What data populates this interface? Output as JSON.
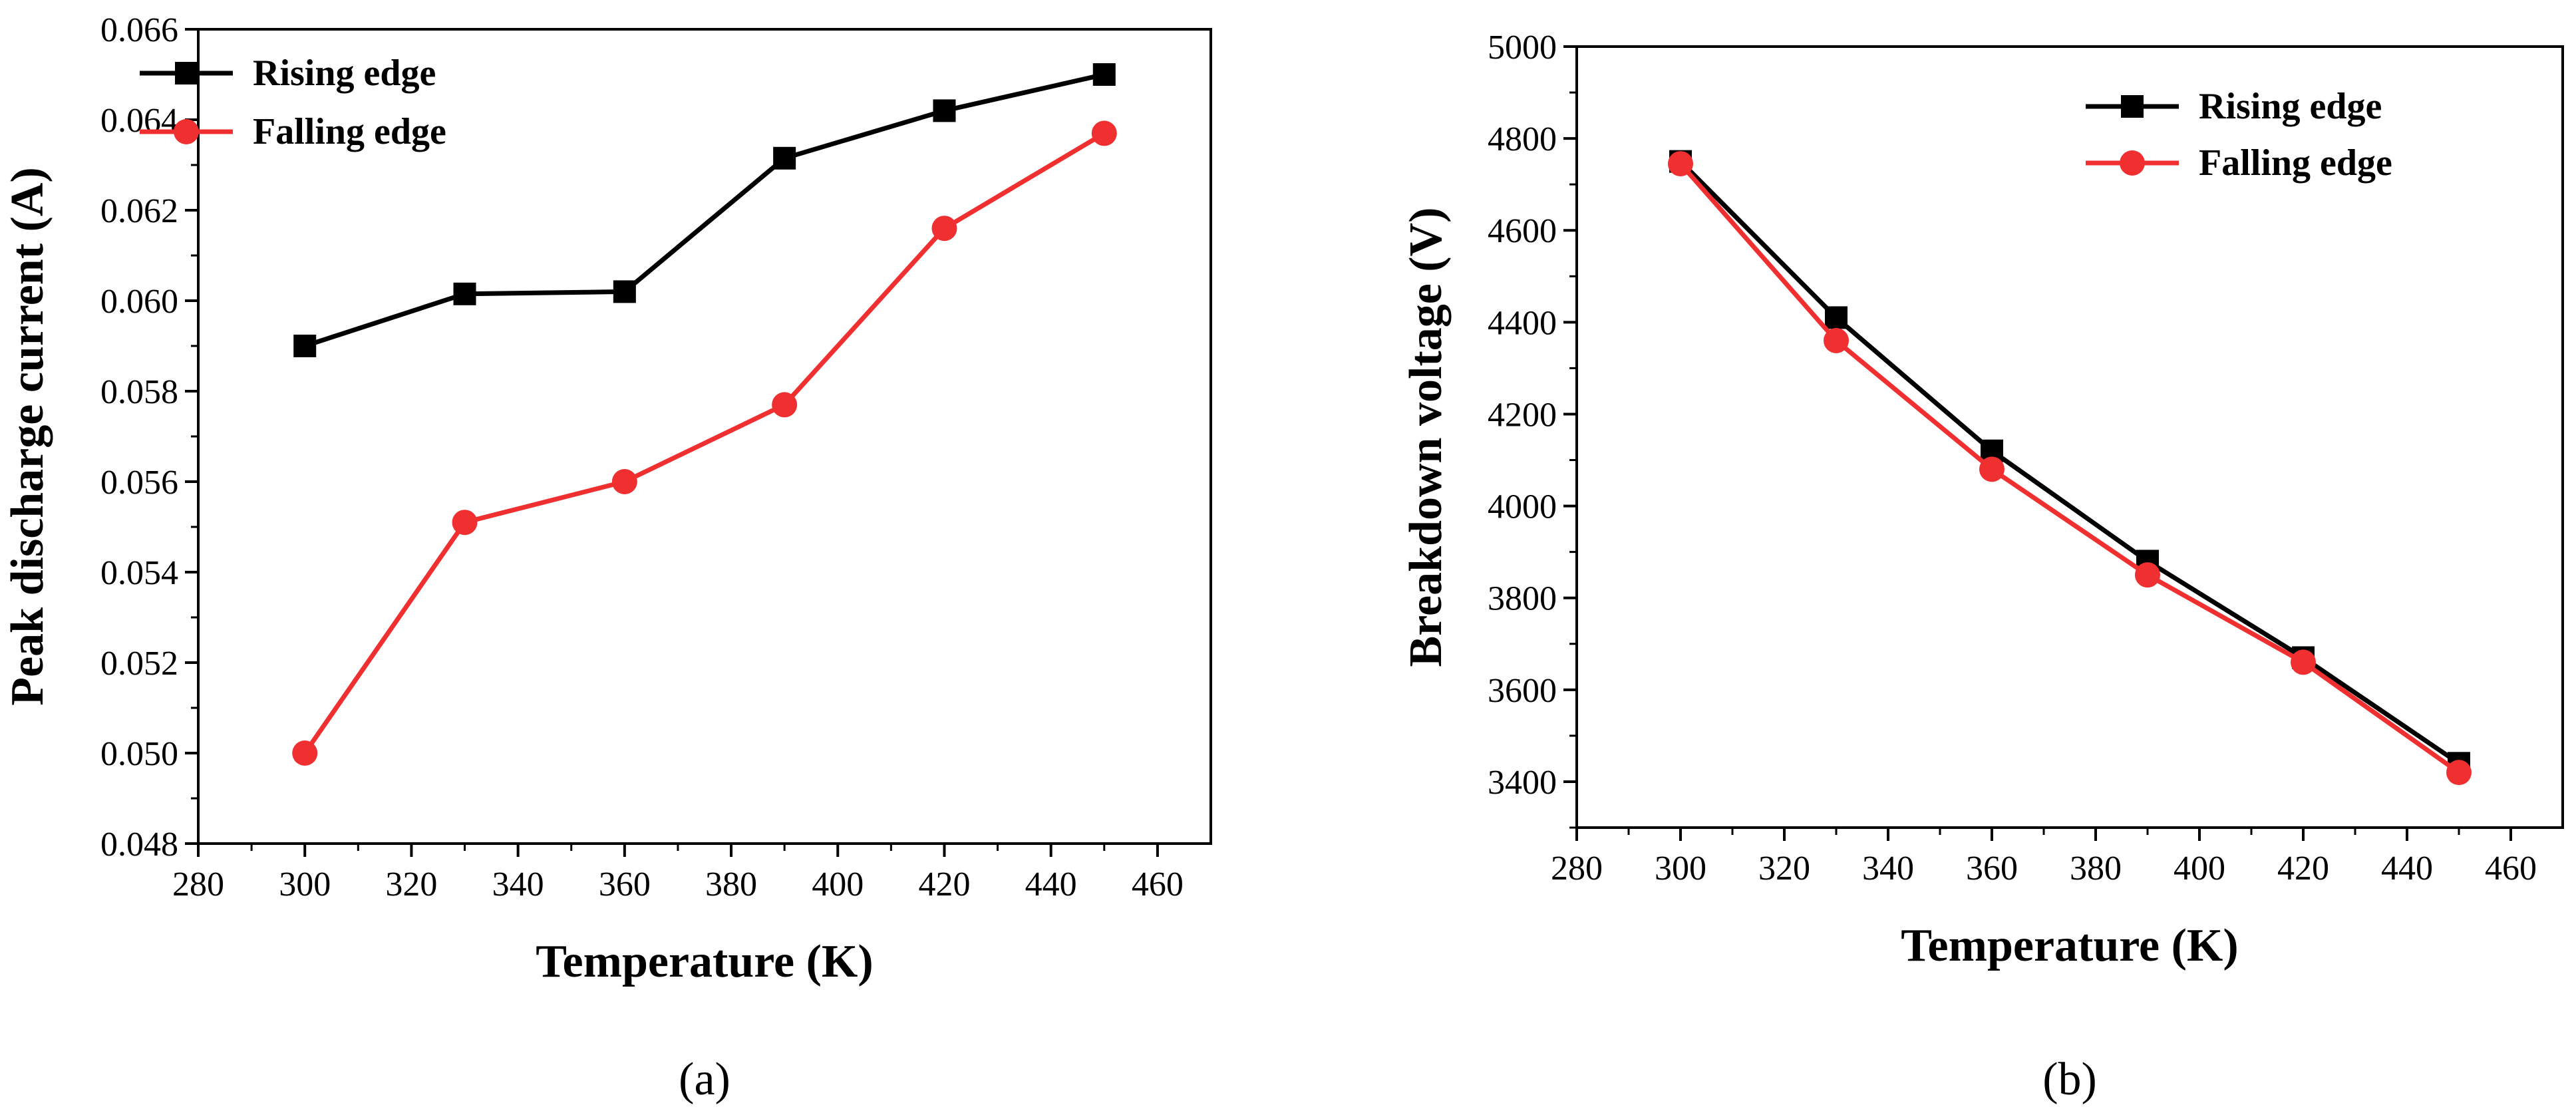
{
  "chart_data": [
    {
      "type": "line",
      "panel_label": "(a)",
      "title": "",
      "xlabel": "Temperature (K)",
      "ylabel": "Peak discharge current (A)",
      "xlim": [
        280,
        470
      ],
      "ylim": [
        0.048,
        0.066
      ],
      "xticks": [
        280,
        300,
        320,
        340,
        360,
        380,
        400,
        420,
        440,
        460
      ],
      "yticks": [
        0.048,
        0.05,
        0.052,
        0.054,
        0.056,
        0.058,
        0.06,
        0.062,
        0.064,
        0.066
      ],
      "ytick_labels": [
        "0.048",
        "0.050",
        "0.052",
        "0.054",
        "0.056",
        "0.058",
        "0.060",
        "0.062",
        "0.064",
        "0.066"
      ],
      "legend_position": "top-left",
      "x": [
        300,
        330,
        360,
        390,
        420,
        450
      ],
      "series": [
        {
          "name": "Rising edge",
          "color": "#000000",
          "marker": "square",
          "values": [
            0.059,
            0.06015,
            0.0602,
            0.06315,
            0.0642,
            0.065
          ]
        },
        {
          "name": "Falling edge",
          "color": "#f03030",
          "marker": "circle",
          "values": [
            0.05,
            0.0551,
            0.056,
            0.0577,
            0.0616,
            0.0637
          ]
        }
      ]
    },
    {
      "type": "line",
      "panel_label": "(b)",
      "title": "",
      "xlabel": "Temperature (K)",
      "ylabel": "Breakdown voltage (V)",
      "xlim": [
        280,
        470
      ],
      "ylim": [
        3300,
        5000
      ],
      "xticks": [
        280,
        300,
        320,
        340,
        360,
        380,
        400,
        420,
        440,
        460
      ],
      "yticks": [
        3400,
        3600,
        3800,
        4000,
        4200,
        4400,
        4600,
        4800,
        5000
      ],
      "ytick_labels": [
        "3400",
        "3600",
        "3800",
        "4000",
        "4200",
        "4400",
        "4600",
        "4800",
        "5000"
      ],
      "legend_position": "top-right",
      "x": [
        300,
        330,
        360,
        390,
        420,
        450
      ],
      "series": [
        {
          "name": "Rising edge",
          "color": "#000000",
          "marker": "square",
          "values": [
            4750,
            4410,
            4120,
            3880,
            3670,
            3440
          ]
        },
        {
          "name": "Falling edge",
          "color": "#f03030",
          "marker": "circle",
          "values": [
            4745,
            4360,
            4080,
            3850,
            3660,
            3420
          ]
        }
      ]
    }
  ]
}
